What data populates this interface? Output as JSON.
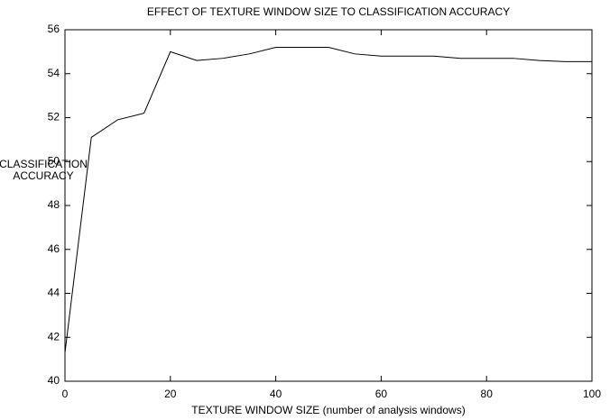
{
  "chart_data": {
    "type": "line",
    "title": "EFFECT OF TEXTURE WINDOW SIZE TO CLASSIFICATION ACCURACY",
    "xlabel": "TEXTURE WINDOW SIZE (number of analysis windows)",
    "ylabel": [
      "CLASSIFICATION",
      "ACCURACY"
    ],
    "x": [
      0,
      5,
      10,
      15,
      20,
      25,
      30,
      35,
      40,
      45,
      50,
      55,
      60,
      65,
      70,
      75,
      80,
      85,
      90,
      95,
      100
    ],
    "series": [
      {
        "color": "#000000",
        "values": [
          41.3,
          51.1,
          51.9,
          52.2,
          55.0,
          54.6,
          54.7,
          54.9,
          55.2,
          55.2,
          55.2,
          54.9,
          54.8,
          54.8,
          54.8,
          54.7,
          54.7,
          54.7,
          54.6,
          54.55,
          54.55
        ]
      }
    ],
    "xlim": [
      0,
      100
    ],
    "xticks": [
      0,
      20,
      40,
      60,
      80,
      100
    ],
    "ylim": [
      40,
      56
    ],
    "yticks": [
      40,
      42,
      44,
      46,
      48,
      50,
      52,
      54,
      56
    ]
  }
}
